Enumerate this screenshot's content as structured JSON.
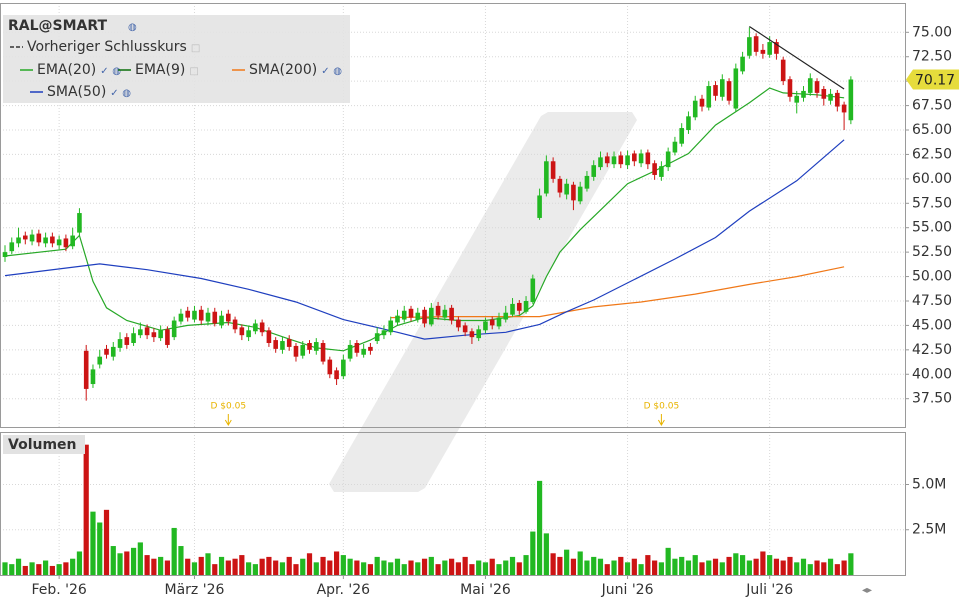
{
  "chart_data": [
    {
      "type": "candlestick",
      "title": "RAL@SMART",
      "up_color": "#22b822",
      "down_color": "#cc1414",
      "ylim": [
        34.5,
        78
      ],
      "xlim": [
        0,
        133
      ],
      "grid": true,
      "yticks": [
        {
          "value": 37.5,
          "label": "37.50"
        },
        {
          "value": 40,
          "label": "40.00"
        },
        {
          "value": 42.5,
          "label": "42.50"
        },
        {
          "value": 45,
          "label": "45.00"
        },
        {
          "value": 47.5,
          "label": "47.50"
        },
        {
          "value": 50,
          "label": "50.00"
        },
        {
          "value": 52.5,
          "label": "52.50"
        },
        {
          "value": 55,
          "label": "55.00"
        },
        {
          "value": 57.5,
          "label": "57.50"
        },
        {
          "value": 60,
          "label": "60.00"
        },
        {
          "value": 62.5,
          "label": "62.50"
        },
        {
          "value": 65,
          "label": "65.00"
        },
        {
          "value": 67.5,
          "label": "67.50"
        },
        {
          "value": 70,
          "label": "70.00"
        },
        {
          "value": 72.5,
          "label": "72.50"
        },
        {
          "value": 75,
          "label": "75.00"
        }
      ],
      "xticks": [
        {
          "value": 8,
          "label": "Feb. '26"
        },
        {
          "value": 28,
          "label": "März '26"
        },
        {
          "value": 50,
          "label": "Apr. '26"
        },
        {
          "value": 71,
          "label": "Mai '26"
        },
        {
          "value": 92,
          "label": "Juni '26"
        },
        {
          "value": 113,
          "label": "Juli '26"
        }
      ],
      "open": [
        52,
        52.6,
        53.4,
        54.2,
        53.6,
        54.4,
        53.4,
        54.1,
        53.2,
        53.9,
        53.1,
        54.5,
        42.4,
        39,
        41,
        42.6,
        41.8,
        42.7,
        43.8,
        43.2,
        44,
        44.8,
        44.3,
        43.7,
        44.6,
        43.8,
        45.4,
        46.5,
        45.6,
        46.6,
        45.4,
        46.4,
        45,
        46.2,
        45.6,
        44.8,
        43.8,
        44.4,
        45.3,
        44.5,
        43.5,
        42.5,
        43.6,
        42.9,
        41.9,
        43.2,
        42.4,
        43.2,
        41.5,
        40.4,
        39.8,
        41.6,
        43.2,
        42,
        42.8,
        43.4,
        44,
        44.3,
        45.3,
        45.6,
        46.7,
        45.6,
        46.6,
        45.1,
        47,
        45.8,
        46.8,
        45.6,
        45,
        44.4,
        43.7,
        44.5,
        45.6,
        44.9,
        45.6,
        46.1,
        47.3,
        46.4,
        47.4,
        56,
        58.5,
        61.8,
        60,
        58.4,
        59.4,
        57.7,
        59,
        60.2,
        61.2,
        62.3,
        61.5,
        62.4,
        61.4,
        62.6,
        61.6,
        62.7,
        61.6,
        60.2,
        61.2,
        62.7,
        63.6,
        65,
        66.3,
        68.2,
        67.3,
        69.6,
        68.4,
        70,
        67.2,
        71,
        72.6,
        74.6,
        73.2,
        72.7,
        74,
        72.2,
        70.2,
        67.8,
        68.3,
        68.8,
        70,
        69.2,
        68,
        68.8,
        67.6,
        66
      ],
      "high": [
        53.2,
        54,
        55,
        54.6,
        54.8,
        54.8,
        54.5,
        54.5,
        54.2,
        54.3,
        55,
        57,
        43,
        41,
        42.5,
        43,
        43.3,
        44.3,
        44.2,
        44.8,
        45.3,
        45.1,
        44.7,
        45,
        44.9,
        45.9,
        46.7,
        46.9,
        47,
        47,
        46.8,
        46.8,
        46.5,
        46.6,
        45.9,
        45.1,
        45,
        45.6,
        45.6,
        44.8,
        43.8,
        43.8,
        44,
        43.2,
        43.4,
        43.5,
        43.7,
        43.5,
        41.8,
        40.7,
        42,
        43.5,
        43.5,
        43.1,
        43.2,
        44.8,
        45,
        45.9,
        46.6,
        47,
        47,
        46.8,
        46.9,
        47.3,
        47.4,
        47.1,
        47.1,
        45.9,
        45.3,
        44.7,
        45,
        45.8,
        45.9,
        46.3,
        47,
        47.8,
        47.6,
        48,
        50.2,
        59,
        62.4,
        62.2,
        60.3,
        60,
        59.7,
        59.7,
        60.8,
        61.9,
        62.8,
        62.7,
        62.8,
        62.8,
        62.9,
        62.9,
        63,
        63,
        61.9,
        61.8,
        63.2,
        64.3,
        65.7,
        66.9,
        68.5,
        68.6,
        70,
        70,
        70.7,
        70.3,
        71.8,
        73,
        75.5,
        74.9,
        73.8,
        74.6,
        74.3,
        72.5,
        70.5,
        69,
        69.5,
        70.8,
        70.3,
        69.5,
        69.2,
        69.1,
        67.9,
        70.5
      ],
      "low": [
        51.5,
        52.3,
        53,
        53.3,
        53.2,
        53.1,
        53,
        53,
        52.8,
        52.6,
        52.8,
        54.2,
        37.3,
        38.6,
        40.6,
        41.6,
        41.4,
        42.3,
        42.6,
        42.9,
        43.7,
        43.6,
        43.3,
        43.4,
        42.7,
        43.5,
        45.1,
        45.4,
        45.3,
        45.1,
        45,
        44.9,
        44.7,
        45,
        44.2,
        43.5,
        43.4,
        44.1,
        43.9,
        42.8,
        42.2,
        42.1,
        42.4,
        41.3,
        41.6,
        42.1,
        42,
        41,
        39.6,
        38.9,
        39.5,
        41.3,
        41.8,
        41.7,
        42,
        43.1,
        43.6,
        44,
        45,
        45.3,
        45.4,
        45.3,
        44.8,
        44.9,
        45.6,
        45.5,
        45.1,
        44.4,
        43.9,
        43.1,
        43.4,
        44.2,
        44.6,
        44.6,
        45.3,
        45.9,
        46.1,
        46.2,
        47.2,
        55.8,
        58.2,
        59.6,
        58.1,
        57.9,
        56.8,
        57.4,
        58.7,
        59.8,
        60.9,
        61.2,
        61.1,
        61.1,
        61,
        61.3,
        61.2,
        61,
        59.9,
        59.8,
        60.8,
        62.4,
        63.3,
        64.6,
        66,
        66.9,
        67,
        68,
        68,
        67.6,
        66.9,
        70.7,
        72.3,
        72.6,
        72.3,
        72.4,
        72.2,
        69.6,
        67.9,
        66.7,
        67.9,
        68.5,
        68.3,
        67.5,
        67.6,
        66.9,
        65,
        65.6
      ],
      "close": [
        52.5,
        53.5,
        54,
        53.8,
        54.3,
        53.5,
        54,
        53.4,
        53.8,
        53,
        54.2,
        56.5,
        38.5,
        40.5,
        41.8,
        42,
        42.8,
        43.6,
        43,
        44.2,
        44.6,
        44,
        43.8,
        44.5,
        43,
        45.5,
        46.2,
        45.8,
        46.5,
        45.5,
        46.3,
        45.2,
        46,
        45.4,
        44.6,
        44,
        44.5,
        45.2,
        44.3,
        43.2,
        42.6,
        43.4,
        42.8,
        41.8,
        43,
        42.5,
        43.3,
        41.3,
        40,
        39.5,
        41.5,
        43,
        42.2,
        42.6,
        42.4,
        44.2,
        44.5,
        45.5,
        46,
        46.5,
        45.8,
        46.3,
        45.2,
        46.8,
        46,
        46.6,
        45.5,
        44.8,
        44.3,
        43.8,
        44.6,
        45.4,
        45,
        45.8,
        46.3,
        47.2,
        46.5,
        47.5,
        49.8,
        58.3,
        61.8,
        60,
        58.6,
        59.5,
        57.8,
        59.2,
        60.3,
        61.4,
        62.2,
        61.6,
        62.3,
        61.5,
        62.4,
        61.8,
        62.6,
        61.5,
        60.4,
        61.3,
        62.8,
        63.8,
        65.2,
        66.4,
        68,
        67.4,
        69.5,
        68.5,
        70.2,
        68,
        71.3,
        72.5,
        74.5,
        73,
        72.8,
        74,
        72.8,
        70,
        68.4,
        68.5,
        69,
        70.3,
        68.8,
        68.2,
        68.7,
        67.4,
        66.8,
        70.17
      ],
      "series": [
        {
          "name": "Vorheriger Schlusskurs",
          "color": "#333333",
          "dashed": true,
          "visible": false
        },
        {
          "name": "EMA(20)",
          "color": "#27a827",
          "visible": true,
          "x": [
            0,
            9,
            11,
            13,
            15,
            18,
            23,
            27,
            33,
            37,
            42,
            46,
            50,
            54,
            58,
            62,
            67,
            71,
            76,
            78,
            80,
            82,
            85,
            88,
            92,
            96,
            101,
            105,
            110,
            113,
            115,
            120,
            124
          ],
          "values": [
            52.1,
            52.8,
            54.2,
            49.5,
            46.8,
            45.5,
            44.5,
            45,
            45.3,
            44.8,
            43.6,
            42.7,
            42.4,
            43.5,
            45,
            45.8,
            45.5,
            45.5,
            46,
            47,
            50,
            52.5,
            54.8,
            56.8,
            59.5,
            60.8,
            62.6,
            65.5,
            67.8,
            69.3,
            68.8,
            68.6,
            68.3
          ]
        },
        {
          "name": "EMA(9)",
          "color": "#0a6e0a",
          "visible": false
        },
        {
          "name": "SMA(200)",
          "color": "#f07818",
          "visible": true,
          "x": [
            57,
            65,
            73,
            79,
            87,
            94,
            102,
            110,
            117,
            124
          ],
          "values": [
            45.8,
            45.9,
            45.9,
            45.9,
            46.9,
            47.4,
            48.2,
            49.2,
            50,
            51
          ]
        },
        {
          "name": "SMA(50)",
          "color": "#1f3fbf",
          "visible": true,
          "x": [
            0,
            14,
            21,
            29,
            36,
            43,
            50,
            58,
            62,
            68,
            74,
            79,
            83,
            87,
            93,
            99,
            105,
            110,
            117,
            124
          ],
          "values": [
            50.1,
            51.3,
            50.7,
            49.8,
            48.7,
            47.4,
            45.6,
            44.3,
            43.6,
            44,
            44.3,
            45.1,
            46.4,
            47.6,
            49.7,
            51.8,
            54,
            56.7,
            59.8,
            64
          ]
        }
      ],
      "trendline": {
        "color": "#222222",
        "x": [
          110,
          124
        ],
        "values": [
          75.6,
          69.2
        ]
      },
      "annotations": [
        {
          "x": 33,
          "label": "D $0.05",
          "color": "#e8b400"
        },
        {
          "x": 97,
          "label": "D $0.05",
          "color": "#e8b400"
        }
      ]
    },
    {
      "type": "bar",
      "title": "Volumen",
      "ylim": [
        0,
        7900000
      ],
      "yticks": [
        {
          "value": 2500000,
          "label": "2.5M"
        },
        {
          "value": 5000000,
          "label": "5.0M"
        }
      ],
      "values": [
        700000,
        600000,
        900000,
        500000,
        700000,
        600000,
        800000,
        500000,
        600000,
        700000,
        900000,
        1300000,
        7200000,
        3500000,
        2900000,
        3600000,
        1600000,
        1200000,
        1300000,
        1500000,
        1800000,
        1100000,
        900000,
        1000000,
        800000,
        2600000,
        1600000,
        900000,
        700000,
        1000000,
        1200000,
        600000,
        1000000,
        800000,
        900000,
        1100000,
        700000,
        600000,
        900000,
        1000000,
        800000,
        700000,
        1000000,
        600000,
        900000,
        1200000,
        700000,
        1000000,
        800000,
        1300000,
        1100000,
        900000,
        800000,
        700000,
        600000,
        1000000,
        800000,
        700000,
        900000,
        600000,
        800000,
        700000,
        900000,
        1000000,
        600000,
        800000,
        900000,
        700000,
        1000000,
        600000,
        800000,
        700000,
        900000,
        600000,
        800000,
        1000000,
        700000,
        1100000,
        2400000,
        5200000,
        2300000,
        1200000,
        1000000,
        1400000,
        900000,
        1300000,
        800000,
        1000000,
        900000,
        600000,
        800000,
        1000000,
        700000,
        900000,
        600000,
        1100000,
        800000,
        700000,
        1500000,
        900000,
        1000000,
        800000,
        1100000,
        700000,
        800000,
        900000,
        700000,
        1000000,
        1200000,
        1100000,
        800000,
        900000,
        1300000,
        1100000,
        900000,
        800000,
        1000000,
        700000,
        900000,
        600000,
        800000,
        700000,
        900000,
        600000,
        800000,
        1200000
      ]
    }
  ]
}
